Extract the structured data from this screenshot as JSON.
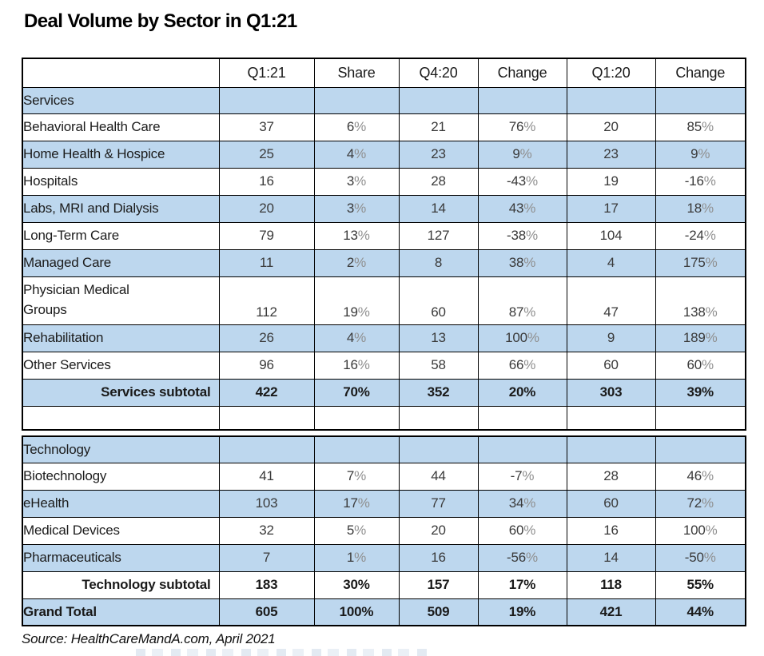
{
  "title": "Deal Volume by Sector in Q1:21",
  "source_note": "Source: HealthCareMandA.com, April 2021",
  "colors": {
    "row_shade": "#BDD7EE",
    "border": "#000000",
    "percent_sign": "#8f8f8f",
    "text": "#1f1f1f"
  },
  "chart_data": {
    "type": "table",
    "title": "Deal Volume by Sector in Q1:21",
    "columns": [
      "",
      "Q1:21",
      "Share",
      "Q4:20",
      "Change",
      "Q1:20",
      "Change"
    ],
    "rows": [
      {
        "label": "Services",
        "type": "section",
        "shade": true,
        "cells": [
          "",
          "",
          "",
          "",
          "",
          ""
        ]
      },
      {
        "label": "Behavioral Health Care",
        "type": "row",
        "shade": false,
        "cells": [
          "37",
          "6%",
          "21",
          "76%",
          "20",
          "85%"
        ]
      },
      {
        "label": "Home Health & Hospice",
        "type": "row",
        "shade": true,
        "cells": [
          "25",
          "4%",
          "23",
          "9%",
          "23",
          "9%"
        ]
      },
      {
        "label": "Hospitals",
        "type": "row",
        "shade": false,
        "cells": [
          "16",
          "3%",
          "28",
          "-43%",
          "19",
          "-16%"
        ]
      },
      {
        "label": "Labs, MRI and Dialysis",
        "type": "row",
        "shade": true,
        "cells": [
          "20",
          "3%",
          "14",
          "43%",
          "17",
          "18%"
        ]
      },
      {
        "label": "Long-Term Care",
        "type": "row",
        "shade": false,
        "cells": [
          "79",
          "13%",
          "127",
          "-38%",
          "104",
          "-24%"
        ]
      },
      {
        "label": "Managed Care",
        "type": "row",
        "shade": true,
        "cells": [
          "11",
          "2%",
          "8",
          "38%",
          "4",
          "175%"
        ]
      },
      {
        "label": "Physician Medical Groups",
        "type": "row",
        "shade": false,
        "tall": true,
        "cells": [
          "112",
          "19%",
          "60",
          "87%",
          "47",
          "138%"
        ]
      },
      {
        "label": "Rehabilitation",
        "type": "row",
        "shade": true,
        "cells": [
          "26",
          "4%",
          "13",
          "100%",
          "9",
          "189%"
        ]
      },
      {
        "label": "Other Services",
        "type": "row",
        "shade": false,
        "cells": [
          "96",
          "16%",
          "58",
          "66%",
          "60",
          "60%"
        ]
      },
      {
        "label": "Services subtotal",
        "type": "subtotal",
        "shade": true,
        "cells": [
          "422",
          "70%",
          "352",
          "20%",
          "303",
          "39%"
        ]
      },
      {
        "label": "",
        "type": "empty",
        "shade": false,
        "cells": [
          "",
          "",
          "",
          "",
          "",
          ""
        ]
      },
      {
        "label": "",
        "type": "spacer",
        "cells": [
          "",
          "",
          "",
          "",
          "",
          ""
        ]
      },
      {
        "label": "Technology",
        "type": "section",
        "shade": true,
        "cells": [
          "",
          "",
          "",
          "",
          "",
          ""
        ]
      },
      {
        "label": "Biotechnology",
        "type": "row",
        "shade": false,
        "cells": [
          "41",
          "7%",
          "44",
          "-7%",
          "28",
          "46%"
        ]
      },
      {
        "label": "eHealth",
        "type": "row",
        "shade": true,
        "cells": [
          "103",
          "17%",
          "77",
          "34%",
          "60",
          "72%"
        ]
      },
      {
        "label": "Medical Devices",
        "type": "row",
        "shade": false,
        "cells": [
          "32",
          "5%",
          "20",
          "60%",
          "16",
          "100%"
        ]
      },
      {
        "label": "Pharmaceuticals",
        "type": "row",
        "shade": true,
        "cells": [
          "7",
          "1%",
          "16",
          "-56%",
          "14",
          "-50%"
        ]
      },
      {
        "label": "Technology subtotal",
        "type": "subtotal",
        "shade": false,
        "cells": [
          "183",
          "30%",
          "157",
          "17%",
          "118",
          "55%"
        ]
      },
      {
        "label": "Grand Total",
        "type": "grand_total",
        "shade": true,
        "cells": [
          "605",
          "100%",
          "509",
          "19%",
          "421",
          "44%"
        ]
      }
    ]
  }
}
